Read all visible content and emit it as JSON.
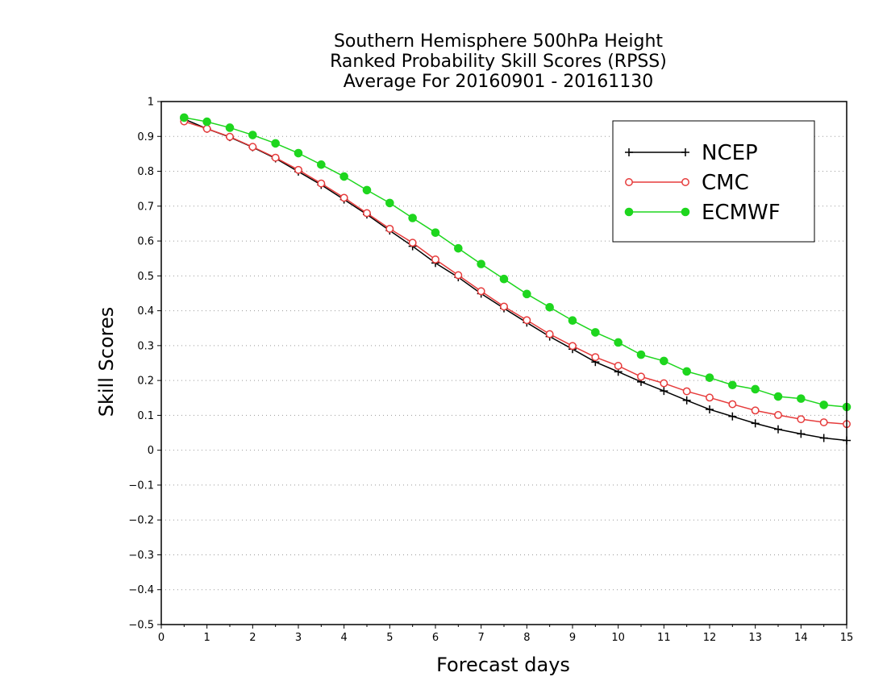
{
  "chart_data": {
    "type": "line",
    "title": [
      "Southern Hemisphere 500hPa Height",
      "Ranked Probability Skill Scores (RPSS)",
      "Average For 20160901 - 20161130"
    ],
    "xlabel": "Forecast days",
    "ylabel": "Skill Scores",
    "xlim": [
      0,
      15
    ],
    "ylim": [
      -0.5,
      1
    ],
    "xticks": [
      0,
      1,
      2,
      3,
      4,
      5,
      6,
      7,
      8,
      9,
      10,
      11,
      12,
      13,
      14,
      15
    ],
    "yticks": [
      -0.5,
      -0.4,
      -0.3,
      -0.2,
      -0.1,
      0,
      0.1,
      0.2,
      0.3,
      0.4,
      0.5,
      0.6,
      0.7,
      0.8,
      0.9,
      1
    ],
    "grid": "horizontal dotted",
    "legend_placement": "top-right",
    "x": [
      0.5,
      1,
      1.5,
      2,
      2.5,
      3,
      3.5,
      4,
      4.5,
      5,
      5.5,
      6,
      6.5,
      7,
      7.5,
      8,
      8.5,
      9,
      9.5,
      10,
      10.5,
      11,
      11.5,
      12,
      12.5,
      13,
      13.5,
      14,
      14.5,
      15
    ],
    "series": [
      {
        "name": "NCEP",
        "color": "#000000",
        "marker": "plus",
        "values": [
          0.95,
          0.922,
          0.898,
          0.869,
          0.837,
          0.799,
          0.761,
          0.719,
          0.676,
          0.63,
          0.585,
          0.537,
          0.496,
          0.449,
          0.407,
          0.366,
          0.326,
          0.29,
          0.253,
          0.225,
          0.196,
          0.17,
          0.143,
          0.117,
          0.097,
          0.077,
          0.06,
          0.047,
          0.035,
          0.028
        ]
      },
      {
        "name": "CMC",
        "color": "#e63b3b",
        "marker": "open-circle",
        "values": [
          0.943,
          0.922,
          0.899,
          0.87,
          0.839,
          0.804,
          0.765,
          0.724,
          0.68,
          0.635,
          0.595,
          0.547,
          0.502,
          0.456,
          0.412,
          0.373,
          0.333,
          0.299,
          0.267,
          0.242,
          0.211,
          0.192,
          0.169,
          0.151,
          0.132,
          0.114,
          0.101,
          0.089,
          0.08,
          0.075
        ]
      },
      {
        "name": "ECMWF",
        "color": "#1ed61e",
        "marker": "filled-circle",
        "values": [
          0.954,
          0.942,
          0.925,
          0.904,
          0.88,
          0.852,
          0.819,
          0.785,
          0.746,
          0.709,
          0.666,
          0.624,
          0.579,
          0.534,
          0.491,
          0.448,
          0.41,
          0.372,
          0.338,
          0.309,
          0.274,
          0.256,
          0.226,
          0.208,
          0.187,
          0.175,
          0.154,
          0.148,
          0.13,
          0.124
        ]
      }
    ]
  }
}
